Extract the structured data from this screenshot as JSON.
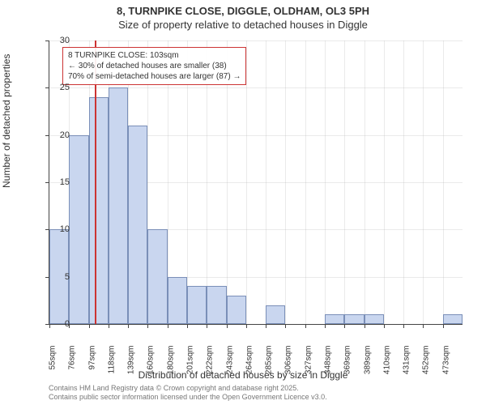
{
  "title_line1": "8, TURNPIKE CLOSE, DIGGLE, OLDHAM, OL3 5PH",
  "title_line2": "Size of property relative to detached houses in Diggle",
  "ylabel": "Number of detached properties",
  "xlabel": "Distribution of detached houses by size in Diggle",
  "chart": {
    "type": "histogram",
    "bar_fill": "#c9d6ef",
    "bar_stroke": "#7a8fb8",
    "background_color": "#ffffff",
    "grid_color": "#bbbbbb",
    "marker_color": "#cc3333",
    "ylim": [
      0,
      30
    ],
    "ytick_step": 5,
    "xticks": [
      "55sqm",
      "76sqm",
      "97sqm",
      "118sqm",
      "139sqm",
      "160sqm",
      "180sqm",
      "201sqm",
      "222sqm",
      "243sqm",
      "264sqm",
      "285sqm",
      "306sqm",
      "327sqm",
      "348sqm",
      "369sqm",
      "389sqm",
      "410sqm",
      "431sqm",
      "452sqm",
      "473sqm"
    ],
    "values": [
      10,
      20,
      24,
      25,
      21,
      10,
      5,
      4,
      4,
      3,
      0,
      2,
      0,
      0,
      1,
      1,
      1,
      0,
      0,
      0,
      1
    ],
    "marker_x_value": 103,
    "marker_x_min": 55,
    "marker_x_max": 494
  },
  "annotation": {
    "line1": "8 TURNPIKE CLOSE: 103sqm",
    "line2": "← 30% of detached houses are smaller (38)",
    "line3": "70% of semi-detached houses are larger (87) →"
  },
  "footer": {
    "line1": "Contains HM Land Registry data © Crown copyright and database right 2025.",
    "line2": "Contains public sector information licensed under the Open Government Licence v3.0."
  }
}
